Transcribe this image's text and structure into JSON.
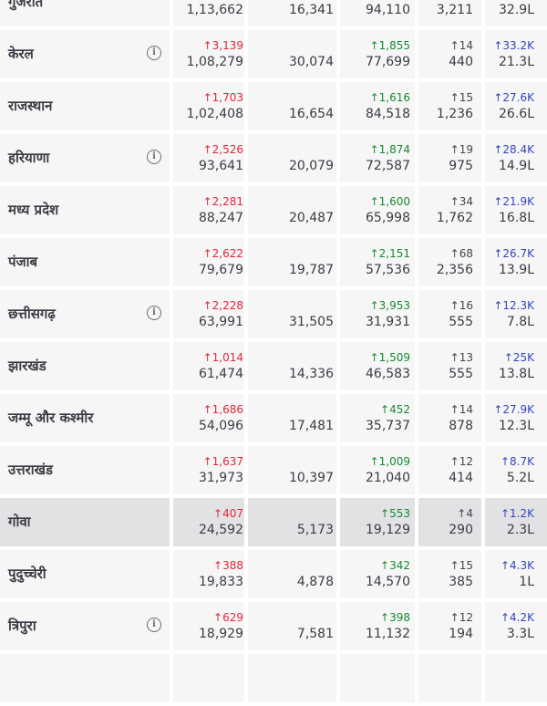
{
  "colors": {
    "confirmed_delta": "#e4253a",
    "recovered_delta": "#17892f",
    "deceased_delta": "#45454c",
    "tested_delta": "#3346b8",
    "row_bg": "#f6f6f7",
    "row_bg_highlight": "#e2e2e4"
  },
  "info_icon": "info-circle-icon",
  "rows": [
    {
      "state": "गुजरात",
      "info": false,
      "highlight": false,
      "confirmed_delta": "",
      "confirmed": "1,13,662",
      "active": "16,341",
      "recovered_delta": "",
      "recovered": "94,110",
      "deceased_delta": "",
      "deceased": "3,211",
      "tested_delta": "",
      "tested": "32.9L"
    },
    {
      "state": "केरल",
      "info": true,
      "highlight": false,
      "confirmed_delta": "↑3,139",
      "confirmed": "1,08,279",
      "active": "30,074",
      "recovered_delta": "↑1,855",
      "recovered": "77,699",
      "deceased_delta": "↑14",
      "deceased": "440",
      "tested_delta": "↑33.2K",
      "tested": "21.3L"
    },
    {
      "state": "राजस्थान",
      "info": false,
      "highlight": false,
      "confirmed_delta": "↑1,703",
      "confirmed": "1,02,408",
      "active": "16,654",
      "recovered_delta": "↑1,616",
      "recovered": "84,518",
      "deceased_delta": "↑15",
      "deceased": "1,236",
      "tested_delta": "↑27.6K",
      "tested": "26.6L"
    },
    {
      "state": "हरियाणा",
      "info": true,
      "highlight": false,
      "confirmed_delta": "↑2,526",
      "confirmed": "93,641",
      "active": "20,079",
      "recovered_delta": "↑1,874",
      "recovered": "72,587",
      "deceased_delta": "↑19",
      "deceased": "975",
      "tested_delta": "↑28.4K",
      "tested": "14.9L"
    },
    {
      "state": "मध्य प्रदेश",
      "info": false,
      "highlight": false,
      "confirmed_delta": "↑2,281",
      "confirmed": "88,247",
      "active": "20,487",
      "recovered_delta": "↑1,600",
      "recovered": "65,998",
      "deceased_delta": "↑34",
      "deceased": "1,762",
      "tested_delta": "↑21.9K",
      "tested": "16.8L"
    },
    {
      "state": "पंजाब",
      "info": false,
      "highlight": false,
      "confirmed_delta": "↑2,622",
      "confirmed": "79,679",
      "active": "19,787",
      "recovered_delta": "↑2,151",
      "recovered": "57,536",
      "deceased_delta": "↑68",
      "deceased": "2,356",
      "tested_delta": "↑26.7K",
      "tested": "13.9L"
    },
    {
      "state": "छत्तीसगढ़",
      "info": true,
      "highlight": false,
      "confirmed_delta": "↑2,228",
      "confirmed": "63,991",
      "active": "31,505",
      "recovered_delta": "↑3,953",
      "recovered": "31,931",
      "deceased_delta": "↑16",
      "deceased": "555",
      "tested_delta": "↑12.3K",
      "tested": "7.8L"
    },
    {
      "state": "झारखंड",
      "info": false,
      "highlight": false,
      "confirmed_delta": "↑1,014",
      "confirmed": "61,474",
      "active": "14,336",
      "recovered_delta": "↑1,509",
      "recovered": "46,583",
      "deceased_delta": "↑13",
      "deceased": "555",
      "tested_delta": "↑25K",
      "tested": "13.8L"
    },
    {
      "state": "जम्मू और कश्मीर",
      "info": false,
      "highlight": false,
      "confirmed_delta": "↑1,686",
      "confirmed": "54,096",
      "active": "17,481",
      "recovered_delta": "↑452",
      "recovered": "35,737",
      "deceased_delta": "↑14",
      "deceased": "878",
      "tested_delta": "↑27.9K",
      "tested": "12.3L"
    },
    {
      "state": "उत्तराखंड",
      "info": false,
      "highlight": false,
      "confirmed_delta": "↑1,637",
      "confirmed": "31,973",
      "active": "10,397",
      "recovered_delta": "↑1,009",
      "recovered": "21,040",
      "deceased_delta": "↑12",
      "deceased": "414",
      "tested_delta": "↑8.7K",
      "tested": "5.2L"
    },
    {
      "state": "गोवा",
      "info": false,
      "highlight": true,
      "confirmed_delta": "↑407",
      "confirmed": "24,592",
      "active": "5,173",
      "recovered_delta": "↑553",
      "recovered": "19,129",
      "deceased_delta": "↑4",
      "deceased": "290",
      "tested_delta": "↑1.2K",
      "tested": "2.3L"
    },
    {
      "state": "पुदुच्चेरी",
      "info": false,
      "highlight": false,
      "confirmed_delta": "↑388",
      "confirmed": "19,833",
      "active": "4,878",
      "recovered_delta": "↑342",
      "recovered": "14,570",
      "deceased_delta": "↑15",
      "deceased": "385",
      "tested_delta": "↑4.3K",
      "tested": "1L"
    },
    {
      "state": "त्रिपुरा",
      "info": true,
      "highlight": false,
      "confirmed_delta": "↑629",
      "confirmed": "18,929",
      "active": "7,581",
      "recovered_delta": "↑398",
      "recovered": "11,132",
      "deceased_delta": "↑12",
      "deceased": "194",
      "tested_delta": "↑4.2K",
      "tested": "3.3L"
    },
    {
      "state": "",
      "info": false,
      "highlight": false,
      "confirmed_delta": "",
      "confirmed": "",
      "active": "",
      "recovered_delta": "",
      "recovered": "",
      "deceased_delta": "",
      "deceased": "",
      "tested_delta": "",
      "tested": ""
    }
  ]
}
